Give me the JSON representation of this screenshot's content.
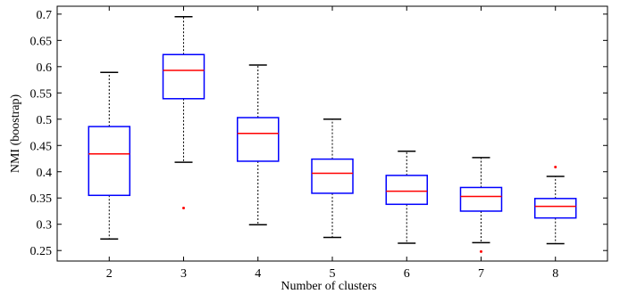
{
  "chart_data": {
    "type": "box",
    "title": "",
    "xlabel": "Number of clusters",
    "ylabel": "NMI (boostrap)",
    "ylim": [
      0.23,
      0.715
    ],
    "xlim": [
      1.3,
      8.7
    ],
    "y_ticks": [
      0.25,
      0.3,
      0.35,
      0.4,
      0.45,
      0.5,
      0.55,
      0.6,
      0.65,
      0.7
    ],
    "y_tick_labels": [
      "0.25",
      "0.3",
      "0.35",
      "0.4",
      "0.45",
      "0.5",
      "0.55",
      "0.6",
      "0.65",
      "0.7"
    ],
    "categories": [
      "2",
      "3",
      "4",
      "5",
      "6",
      "7",
      "8"
    ],
    "boxes": [
      {
        "x": 2,
        "whisker_low": 0.272,
        "q1": 0.355,
        "median": 0.434,
        "q3": 0.486,
        "whisker_high": 0.589,
        "outliers": []
      },
      {
        "x": 3,
        "whisker_low": 0.418,
        "q1": 0.539,
        "median": 0.593,
        "q3": 0.623,
        "whisker_high": 0.695,
        "outliers": [
          0.331
        ]
      },
      {
        "x": 4,
        "whisker_low": 0.299,
        "q1": 0.42,
        "median": 0.473,
        "q3": 0.503,
        "whisker_high": 0.603,
        "outliers": []
      },
      {
        "x": 5,
        "whisker_low": 0.275,
        "q1": 0.359,
        "median": 0.397,
        "q3": 0.424,
        "whisker_high": 0.5,
        "outliers": []
      },
      {
        "x": 6,
        "whisker_low": 0.264,
        "q1": 0.338,
        "median": 0.363,
        "q3": 0.393,
        "whisker_high": 0.439,
        "outliers": []
      },
      {
        "x": 7,
        "whisker_low": 0.265,
        "q1": 0.325,
        "median": 0.353,
        "q3": 0.37,
        "whisker_high": 0.427,
        "outliers": [
          0.248
        ]
      },
      {
        "x": 8,
        "whisker_low": 0.263,
        "q1": 0.312,
        "median": 0.334,
        "q3": 0.349,
        "whisker_high": 0.391,
        "outliers": [
          0.409
        ]
      }
    ],
    "grid": false,
    "colors": {
      "box": "#0000ff",
      "median": "#ff0000",
      "whisker": "#000000",
      "outlier": "#ff0000"
    }
  }
}
